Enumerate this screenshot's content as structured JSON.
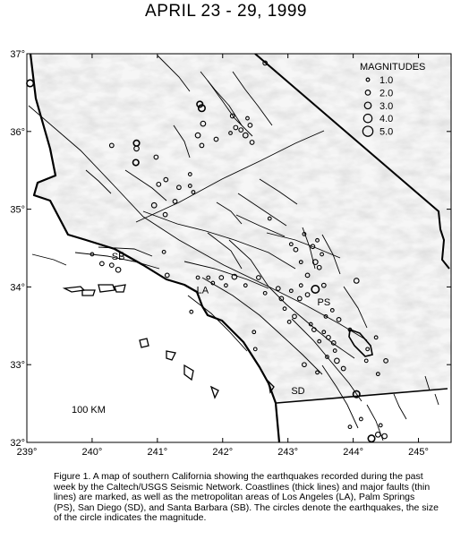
{
  "title": "APRIL 23 - 29, 1999",
  "map": {
    "lon_range": [
      239,
      245.5
    ],
    "lat_range": [
      32,
      37
    ],
    "lon_ticks": [
      "239°",
      "240°",
      "241°",
      "242°",
      "243°",
      "244°",
      "245°"
    ],
    "lat_ticks": [
      "37°",
      "36°",
      "35°",
      "34°",
      "33°",
      "32°"
    ],
    "scale_label": "100 KM",
    "cities": [
      {
        "label": "SB",
        "lon": 240.3,
        "lat": 34.35
      },
      {
        "label": "LA",
        "lon": 241.6,
        "lat": 33.92
      },
      {
        "label": "PS",
        "lon": 243.45,
        "lat": 33.76
      },
      {
        "label": "SD",
        "lon": 243.05,
        "lat": 32.62
      }
    ]
  },
  "legend": {
    "title": "MAGNITUDES",
    "entries": [
      {
        "label": "1.0",
        "mag": 1.0
      },
      {
        "label": "2.0",
        "mag": 2.0
      },
      {
        "label": "3.0",
        "mag": 3.0
      },
      {
        "label": "4.0",
        "mag": 4.0
      },
      {
        "label": "5.0",
        "mag": 5.0
      }
    ]
  },
  "earthquakes": [
    {
      "lon": 239.05,
      "lat": 36.62,
      "mag": 3.0
    },
    {
      "lon": 240.3,
      "lat": 35.82,
      "mag": 1.5
    },
    {
      "lon": 240.68,
      "lat": 35.85,
      "mag": 2.5
    },
    {
      "lon": 240.68,
      "lat": 35.78,
      "mag": 2.0
    },
    {
      "lon": 240.67,
      "lat": 35.6,
      "mag": 2.5
    },
    {
      "lon": 240.98,
      "lat": 35.67,
      "mag": 1.5
    },
    {
      "lon": 241.02,
      "lat": 35.32,
      "mag": 1.5
    },
    {
      "lon": 241.13,
      "lat": 35.38,
      "mag": 1.5
    },
    {
      "lon": 241.33,
      "lat": 35.28,
      "mag": 1.5
    },
    {
      "lon": 241.27,
      "lat": 35.1,
      "mag": 1.5
    },
    {
      "lon": 241.12,
      "lat": 34.93,
      "mag": 1.5
    },
    {
      "lon": 240.95,
      "lat": 35.05,
      "mag": 2.0
    },
    {
      "lon": 241.65,
      "lat": 36.35,
      "mag": 2.5
    },
    {
      "lon": 241.68,
      "lat": 36.3,
      "mag": 3.0
    },
    {
      "lon": 241.7,
      "lat": 36.1,
      "mag": 2.0
    },
    {
      "lon": 241.62,
      "lat": 35.95,
      "mag": 2.0
    },
    {
      "lon": 241.68,
      "lat": 35.82,
      "mag": 1.5
    },
    {
      "lon": 241.9,
      "lat": 35.9,
      "mag": 1.5
    },
    {
      "lon": 242.15,
      "lat": 36.2,
      "mag": 1.5
    },
    {
      "lon": 242.2,
      "lat": 36.05,
      "mag": 1.5
    },
    {
      "lon": 242.28,
      "lat": 36.02,
      "mag": 1.5
    },
    {
      "lon": 242.35,
      "lat": 35.95,
      "mag": 2.0
    },
    {
      "lon": 242.42,
      "lat": 36.08,
      "mag": 1.5
    },
    {
      "lon": 242.45,
      "lat": 35.86,
      "mag": 1.5
    },
    {
      "lon": 242.38,
      "lat": 36.17,
      "mag": 1.0
    },
    {
      "lon": 242.12,
      "lat": 35.98,
      "mag": 1.0
    },
    {
      "lon": 241.5,
      "lat": 35.45,
      "mag": 1.0
    },
    {
      "lon": 241.55,
      "lat": 35.22,
      "mag": 1.0
    },
    {
      "lon": 242.65,
      "lat": 36.88,
      "mag": 1.5
    },
    {
      "lon": 241.5,
      "lat": 35.3,
      "mag": 1.0
    },
    {
      "lon": 240.45,
      "lat": 34.42,
      "mag": 1.5
    },
    {
      "lon": 240.3,
      "lat": 34.28,
      "mag": 1.5
    },
    {
      "lon": 240.4,
      "lat": 34.22,
      "mag": 2.0
    },
    {
      "lon": 240.15,
      "lat": 34.3,
      "mag": 1.5
    },
    {
      "lon": 240.0,
      "lat": 34.42,
      "mag": 1.0
    },
    {
      "lon": 241.15,
      "lat": 34.15,
      "mag": 1.5
    },
    {
      "lon": 241.1,
      "lat": 34.45,
      "mag": 1.0
    },
    {
      "lon": 241.62,
      "lat": 34.12,
      "mag": 1.0
    },
    {
      "lon": 241.98,
      "lat": 34.12,
      "mag": 1.5
    },
    {
      "lon": 242.18,
      "lat": 34.13,
      "mag": 2.0
    },
    {
      "lon": 242.05,
      "lat": 34.02,
      "mag": 1.0
    },
    {
      "lon": 241.78,
      "lat": 34.12,
      "mag": 1.0
    },
    {
      "lon": 242.35,
      "lat": 34.02,
      "mag": 1.0
    },
    {
      "lon": 242.55,
      "lat": 34.12,
      "mag": 1.5
    },
    {
      "lon": 242.65,
      "lat": 33.92,
      "mag": 1.0
    },
    {
      "lon": 242.85,
      "lat": 33.98,
      "mag": 1.5
    },
    {
      "lon": 242.9,
      "lat": 33.85,
      "mag": 1.5
    },
    {
      "lon": 243.05,
      "lat": 33.95,
      "mag": 1.0
    },
    {
      "lon": 243.18,
      "lat": 33.85,
      "mag": 1.5
    },
    {
      "lon": 243.3,
      "lat": 33.9,
      "mag": 1.5
    },
    {
      "lon": 243.42,
      "lat": 33.97,
      "mag": 3.5
    },
    {
      "lon": 243.55,
      "lat": 34.02,
      "mag": 1.5
    },
    {
      "lon": 243.2,
      "lat": 34.02,
      "mag": 1.0
    },
    {
      "lon": 242.95,
      "lat": 33.72,
      "mag": 1.0
    },
    {
      "lon": 243.1,
      "lat": 33.62,
      "mag": 1.5
    },
    {
      "lon": 243.02,
      "lat": 33.55,
      "mag": 1.0
    },
    {
      "lon": 243.35,
      "lat": 33.52,
      "mag": 1.0
    },
    {
      "lon": 243.4,
      "lat": 33.45,
      "mag": 1.5
    },
    {
      "lon": 243.55,
      "lat": 33.42,
      "mag": 1.0
    },
    {
      "lon": 243.62,
      "lat": 33.35,
      "mag": 1.5
    },
    {
      "lon": 243.7,
      "lat": 33.28,
      "mag": 1.5
    },
    {
      "lon": 243.48,
      "lat": 33.3,
      "mag": 1.0
    },
    {
      "lon": 243.6,
      "lat": 33.1,
      "mag": 1.0
    },
    {
      "lon": 243.72,
      "lat": 33.18,
      "mag": 1.0
    },
    {
      "lon": 243.75,
      "lat": 33.05,
      "mag": 2.0
    },
    {
      "lon": 243.85,
      "lat": 32.95,
      "mag": 1.5
    },
    {
      "lon": 243.45,
      "lat": 32.9,
      "mag": 1.0
    },
    {
      "lon": 243.25,
      "lat": 33.0,
      "mag": 1.5
    },
    {
      "lon": 243.58,
      "lat": 33.62,
      "mag": 1.0
    },
    {
      "lon": 243.68,
      "lat": 33.7,
      "mag": 1.0
    },
    {
      "lon": 243.78,
      "lat": 33.58,
      "mag": 1.5
    },
    {
      "lon": 243.95,
      "lat": 33.45,
      "mag": 1.0
    },
    {
      "lon": 244.22,
      "lat": 33.2,
      "mag": 1.0
    },
    {
      "lon": 244.35,
      "lat": 33.35,
      "mag": 1.0
    },
    {
      "lon": 244.5,
      "lat": 33.05,
      "mag": 1.5
    },
    {
      "lon": 244.2,
      "lat": 33.05,
      "mag": 1.0
    },
    {
      "lon": 244.38,
      "lat": 32.88,
      "mag": 1.0
    },
    {
      "lon": 244.05,
      "lat": 32.62,
      "mag": 3.0
    },
    {
      "lon": 244.12,
      "lat": 32.3,
      "mag": 1.0
    },
    {
      "lon": 244.28,
      "lat": 32.05,
      "mag": 3.0
    },
    {
      "lon": 244.38,
      "lat": 32.1,
      "mag": 2.0
    },
    {
      "lon": 244.48,
      "lat": 32.08,
      "mag": 2.0
    },
    {
      "lon": 243.95,
      "lat": 32.2,
      "mag": 1.0
    },
    {
      "lon": 244.42,
      "lat": 32.22,
      "mag": 1.0
    },
    {
      "lon": 243.38,
      "lat": 34.52,
      "mag": 1.5
    },
    {
      "lon": 243.42,
      "lat": 34.32,
      "mag": 2.0
    },
    {
      "lon": 243.48,
      "lat": 34.25,
      "mag": 1.5
    },
    {
      "lon": 243.52,
      "lat": 34.42,
      "mag": 1.0
    },
    {
      "lon": 243.45,
      "lat": 34.6,
      "mag": 1.0
    },
    {
      "lon": 243.12,
      "lat": 34.48,
      "mag": 1.5
    },
    {
      "lon": 243.2,
      "lat": 34.32,
      "mag": 1.0
    },
    {
      "lon": 243.3,
      "lat": 34.15,
      "mag": 1.5
    },
    {
      "lon": 243.25,
      "lat": 34.68,
      "mag": 1.0
    },
    {
      "lon": 243.05,
      "lat": 34.55,
      "mag": 1.0
    },
    {
      "lon": 244.05,
      "lat": 34.08,
      "mag": 2.0
    },
    {
      "lon": 242.72,
      "lat": 34.88,
      "mag": 1.0
    },
    {
      "lon": 241.85,
      "lat": 34.05,
      "mag": 1.0
    },
    {
      "lon": 241.52,
      "lat": 33.68,
      "mag": 1.0
    },
    {
      "lon": 242.48,
      "lat": 33.42,
      "mag": 1.0
    },
    {
      "lon": 242.5,
      "lat": 33.2,
      "mag": 1.0
    }
  ],
  "caption": "Figure 1. A map of southern California showing the earthquakes recorded during the past week by the Caltech/USGS Seismic Network.  Coastlines (thick lines) and major faults (thin lines) are marked, as well as the metropolitan areas of Los Angeles (LA), Palm Springs (PS), San Diego (SD), and Santa Barbara (SB).  The circles denote the earthquakes, the size of the circle indicates the magnitude."
}
